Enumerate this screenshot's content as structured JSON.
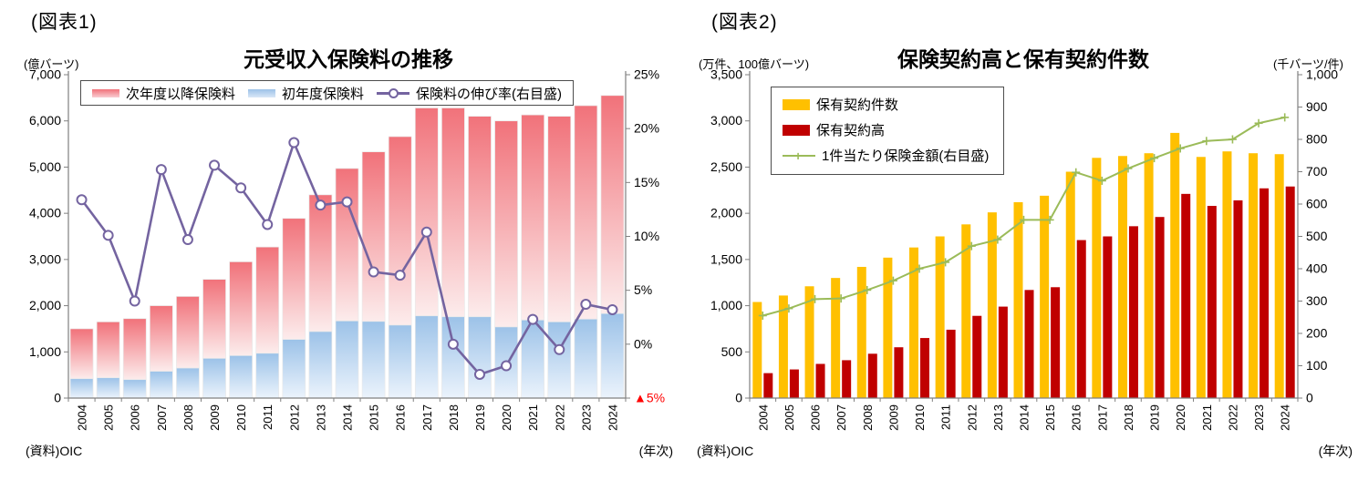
{
  "figure1": {
    "label": "(図表1)",
    "title": "元受収入保険料の推移",
    "unit_left": "(億バーツ)",
    "source": "(資料)OIC",
    "axis_note": "(年次)"
  },
  "figure2": {
    "label": "(図表2)",
    "title": "保険契約高と保有契約件数",
    "unit_left": "(万件、100億バーツ)",
    "unit_right": "(千バーツ/件)",
    "source": "(資料)OIC",
    "axis_note": "(年次)"
  },
  "colors": {
    "renewal_top": "#F1727A",
    "renewal_bottom": "#FCECEC",
    "first_year_top": "#9CC2E8",
    "first_year_bottom": "#EBF3FC",
    "growth_line": "#7464A0",
    "policies_bar": "#FFC000",
    "amount_bar": "#C00000",
    "per_policy_line": "#9BBB59",
    "axis": "#808080",
    "negative_tick": "#FF0000"
  },
  "chart_data": [
    {
      "type": "bar",
      "subtype": "stacked-bars-with-line",
      "title": "元受収入保険料の推移",
      "categories": [
        "2004",
        "2005",
        "2006",
        "2007",
        "2008",
        "2009",
        "2010",
        "2011",
        "2012",
        "2013",
        "2014",
        "2015",
        "2016",
        "2017",
        "2018",
        "2019",
        "2020",
        "2021",
        "2022",
        "2023",
        "2024"
      ],
      "series": [
        {
          "name": "次年度以降保険料",
          "type": "bar",
          "stack": "premium",
          "values": [
            1080,
            1210,
            1320,
            1420,
            1550,
            1710,
            2030,
            2300,
            2620,
            2960,
            3300,
            3670,
            4080,
            4500,
            4520,
            4340,
            4460,
            4440,
            4450,
            4620,
            4720
          ]
        },
        {
          "name": "初年度保険料",
          "type": "bar",
          "stack": "premium",
          "values": [
            420,
            440,
            400,
            580,
            650,
            860,
            920,
            970,
            1270,
            1440,
            1670,
            1660,
            1580,
            1780,
            1760,
            1760,
            1540,
            1690,
            1650,
            1710,
            1830
          ]
        },
        {
          "name": "保険料の伸び率(右目盛)",
          "type": "line",
          "axis": "right",
          "values": [
            13.4,
            10.1,
            4.0,
            16.2,
            9.7,
            16.6,
            14.5,
            11.1,
            18.7,
            12.9,
            13.2,
            6.7,
            6.4,
            10.4,
            0.0,
            -2.8,
            -2.0,
            2.3,
            -0.5,
            3.7,
            3.2
          ]
        }
      ],
      "ylabel_left": "(億バーツ)",
      "ylim_left": [
        0,
        7000
      ],
      "yticks_left": [
        0,
        1000,
        2000,
        3000,
        4000,
        5000,
        6000,
        7000
      ],
      "ylim_right": [
        -5,
        25
      ],
      "yticks_right": [
        {
          "value": 25,
          "label": "25%"
        },
        {
          "value": 20,
          "label": "20%"
        },
        {
          "value": 15,
          "label": "15%"
        },
        {
          "value": 10,
          "label": "10%"
        },
        {
          "value": 5,
          "label": "5%"
        },
        {
          "value": 0,
          "label": "0%"
        },
        {
          "value": -5,
          "label": "▲5%",
          "color": "#FF0000"
        }
      ],
      "grid": false,
      "legend_position": "top"
    },
    {
      "type": "bar",
      "subtype": "grouped-bars-with-line",
      "title": "保険契約高と保有契約件数",
      "categories": [
        "2004",
        "2005",
        "2006",
        "2007",
        "2008",
        "2009",
        "2010",
        "2011",
        "2012",
        "2013",
        "2014",
        "2015",
        "2016",
        "2017",
        "2018",
        "2019",
        "2020",
        "2021",
        "2022",
        "2023",
        "2024"
      ],
      "series": [
        {
          "name": "保有契約件数",
          "type": "bar",
          "values": [
            1040,
            1110,
            1210,
            1300,
            1420,
            1520,
            1630,
            1750,
            1880,
            2010,
            2120,
            2190,
            2450,
            2600,
            2620,
            2650,
            2870,
            2610,
            2670,
            2650,
            2640
          ]
        },
        {
          "name": "保有契約高",
          "type": "bar",
          "values": [
            270,
            310,
            370,
            410,
            480,
            550,
            650,
            740,
            890,
            990,
            1170,
            1200,
            1710,
            1750,
            1860,
            1960,
            2210,
            2080,
            2140,
            2270,
            2290
          ]
        },
        {
          "name": "1件当たり保険金額(右目盛)",
          "type": "line",
          "axis": "right",
          "values": [
            255,
            277,
            306,
            308,
            334,
            363,
            400,
            420,
            470,
            490,
            551,
            551,
            698,
            672,
            710,
            742,
            772,
            795,
            800,
            850,
            868
          ]
        }
      ],
      "ylabel_left": "(万件、100億バーツ)",
      "ylabel_right": "(千バーツ/件)",
      "ylim_left": [
        0,
        3500
      ],
      "yticks_left": [
        0,
        500,
        1000,
        1500,
        2000,
        2500,
        3000,
        3500
      ],
      "ylim_right": [
        0,
        1000
      ],
      "yticks_right": [
        {
          "value": 1000,
          "label": "1,000"
        },
        {
          "value": 900,
          "label": "900"
        },
        {
          "value": 800,
          "label": "800"
        },
        {
          "value": 700,
          "label": "700"
        },
        {
          "value": 600,
          "label": "600"
        },
        {
          "value": 500,
          "label": "500"
        },
        {
          "value": 400,
          "label": "400"
        },
        {
          "value": 300,
          "label": "300"
        },
        {
          "value": 200,
          "label": "200"
        },
        {
          "value": 100,
          "label": "100"
        },
        {
          "value": 0,
          "label": "0"
        }
      ],
      "grid": false,
      "legend_position": "top-left"
    }
  ]
}
